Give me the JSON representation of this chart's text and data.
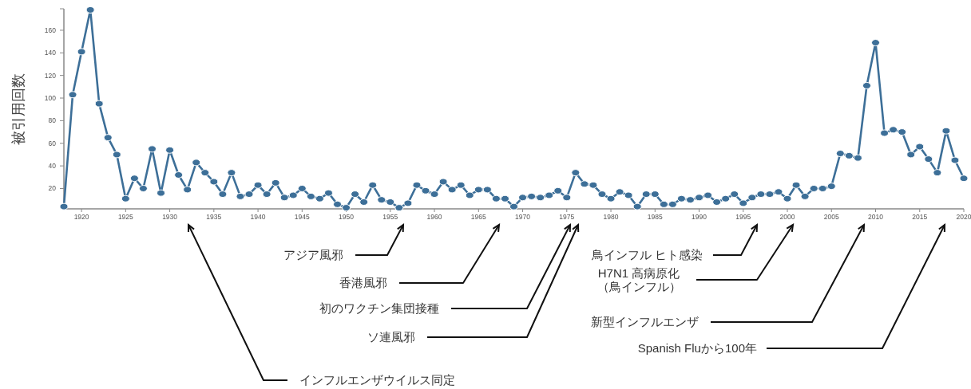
{
  "chart_data": {
    "type": "line",
    "ylabel": "被引用回数",
    "color": "#3d6f98",
    "marker": "circle",
    "grid": false,
    "xlim": [
      1918,
      2020
    ],
    "ylim": [
      2,
      179
    ],
    "xticks": [
      1920,
      1925,
      1930,
      1935,
      1940,
      1945,
      1950,
      1955,
      1960,
      1965,
      1970,
      1975,
      1980,
      1985,
      1990,
      1995,
      2000,
      2005,
      2010,
      2015,
      2020
    ],
    "yticks": [
      20,
      40,
      60,
      80,
      100,
      120,
      140,
      160
    ],
    "x": [
      1918,
      1919,
      1920,
      1921,
      1922,
      1923,
      1924,
      1925,
      1926,
      1927,
      1928,
      1929,
      1930,
      1931,
      1932,
      1933,
      1934,
      1935,
      1936,
      1937,
      1938,
      1939,
      1940,
      1941,
      1942,
      1943,
      1944,
      1945,
      1946,
      1947,
      1948,
      1949,
      1950,
      1951,
      1952,
      1953,
      1954,
      1955,
      1956,
      1957,
      1958,
      1959,
      1960,
      1961,
      1962,
      1963,
      1964,
      1965,
      1966,
      1967,
      1968,
      1969,
      1970,
      1971,
      1972,
      1973,
      1974,
      1975,
      1976,
      1977,
      1978,
      1979,
      1980,
      1981,
      1982,
      1983,
      1984,
      1985,
      1986,
      1987,
      1988,
      1989,
      1990,
      1991,
      1992,
      1993,
      1994,
      1995,
      1996,
      1997,
      1998,
      1999,
      2000,
      2001,
      2002,
      2003,
      2004,
      2005,
      2006,
      2007,
      2008,
      2009,
      2010,
      2011,
      2012,
      2013,
      2014,
      2015,
      2016,
      2017,
      2018,
      2019,
      2020
    ],
    "values": [
      4,
      103,
      141,
      178,
      95,
      65,
      50,
      11,
      29,
      20,
      55,
      16,
      54,
      32,
      19,
      43,
      34,
      26,
      15,
      34,
      13,
      15,
      23,
      15,
      25,
      12,
      14,
      20,
      13,
      11,
      16,
      6,
      3,
      15,
      8,
      23,
      10,
      8,
      3,
      7,
      23,
      18,
      15,
      26,
      19,
      23,
      14,
      19,
      19,
      11,
      11,
      4,
      12,
      13,
      12,
      14,
      18,
      12,
      34,
      24,
      23,
      15,
      11,
      17,
      14,
      4,
      15,
      15,
      6,
      6,
      11,
      10,
      12,
      14,
      8,
      11,
      15,
      7,
      12,
      15,
      15,
      17,
      11,
      23,
      13,
      20,
      20,
      22,
      51,
      49,
      47,
      111,
      149,
      69,
      72,
      70,
      50,
      57,
      46,
      34,
      71,
      45,
      29
    ],
    "annotations": [
      "インフルエンザウイルス同定",
      "アジア風邪",
      "香港風邪",
      "初のワクチン集団接種",
      "ソ連風邪",
      "鳥インフル ヒト感染",
      "H7N1 高病原化（鳥インフル）",
      "新型インフルエンザ",
      "Spanish Fluから100年"
    ]
  }
}
